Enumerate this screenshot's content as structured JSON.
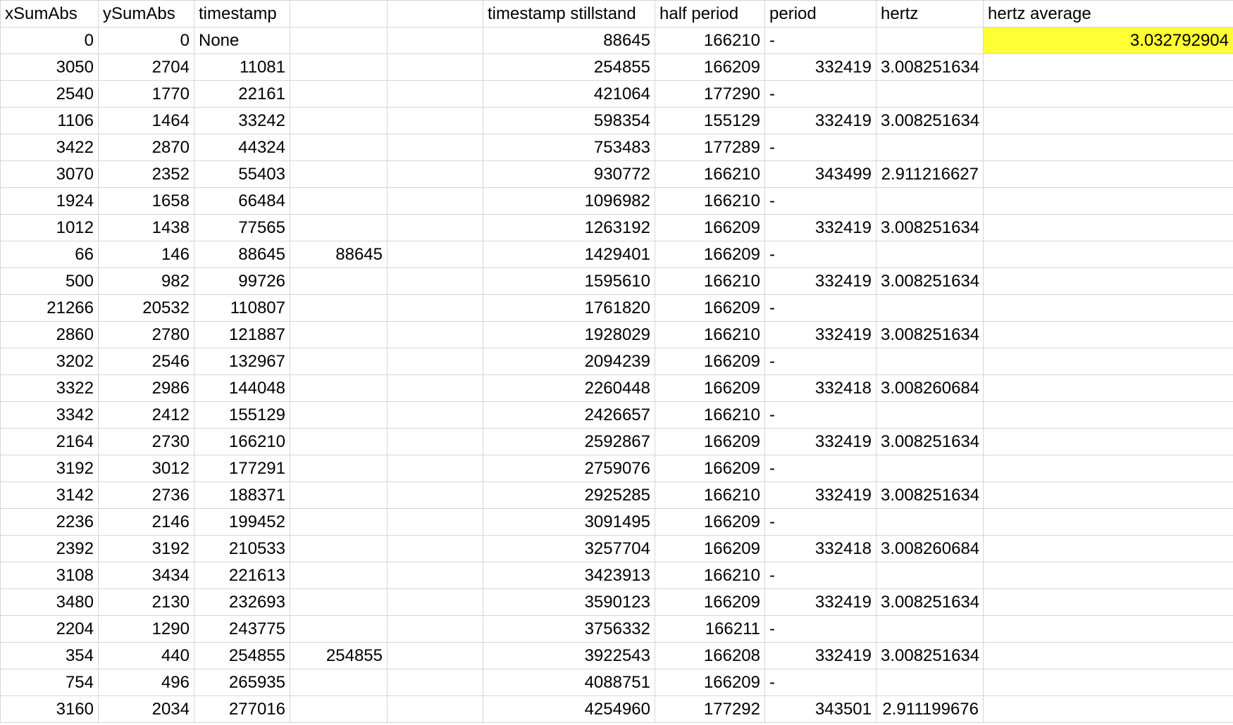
{
  "sheet": {
    "columns": [
      "xSumAbs",
      "ySumAbs",
      "timestamp",
      "",
      "",
      "timestamp stillstand",
      "half period",
      "period",
      "hertz",
      "hertz average"
    ],
    "rows": [
      [
        "0",
        "0",
        "None",
        "",
        "",
        "88645",
        "166210",
        "-",
        "",
        "3.032792904"
      ],
      [
        "3050",
        "2704",
        "11081",
        "",
        "",
        "254855",
        "166209",
        "332419",
        "3.008251634",
        ""
      ],
      [
        "2540",
        "1770",
        "22161",
        "",
        "",
        "421064",
        "177290",
        "-",
        "",
        ""
      ],
      [
        "1106",
        "1464",
        "33242",
        "",
        "",
        "598354",
        "155129",
        "332419",
        "3.008251634",
        ""
      ],
      [
        "3422",
        "2870",
        "44324",
        "",
        "",
        "753483",
        "177289",
        "-",
        "",
        ""
      ],
      [
        "3070",
        "2352",
        "55403",
        "",
        "",
        "930772",
        "166210",
        "343499",
        "2.911216627",
        ""
      ],
      [
        "1924",
        "1658",
        "66484",
        "",
        "",
        "1096982",
        "166210",
        "-",
        "",
        ""
      ],
      [
        "1012",
        "1438",
        "77565",
        "",
        "",
        "1263192",
        "166209",
        "332419",
        "3.008251634",
        ""
      ],
      [
        "66",
        "146",
        "88645",
        "88645",
        "",
        "1429401",
        "166209",
        "-",
        "",
        ""
      ],
      [
        "500",
        "982",
        "99726",
        "",
        "",
        "1595610",
        "166210",
        "332419",
        "3.008251634",
        ""
      ],
      [
        "21266",
        "20532",
        "110807",
        "",
        "",
        "1761820",
        "166209",
        "-",
        "",
        ""
      ],
      [
        "2860",
        "2780",
        "121887",
        "",
        "",
        "1928029",
        "166210",
        "332419",
        "3.008251634",
        ""
      ],
      [
        "3202",
        "2546",
        "132967",
        "",
        "",
        "2094239",
        "166209",
        "-",
        "",
        ""
      ],
      [
        "3322",
        "2986",
        "144048",
        "",
        "",
        "2260448",
        "166209",
        "332418",
        "3.008260684",
        ""
      ],
      [
        "3342",
        "2412",
        "155129",
        "",
        "",
        "2426657",
        "166210",
        "-",
        "",
        ""
      ],
      [
        "2164",
        "2730",
        "166210",
        "",
        "",
        "2592867",
        "166209",
        "332419",
        "3.008251634",
        ""
      ],
      [
        "3192",
        "3012",
        "177291",
        "",
        "",
        "2759076",
        "166209",
        "-",
        "",
        ""
      ],
      [
        "3142",
        "2736",
        "188371",
        "",
        "",
        "2925285",
        "166210",
        "332419",
        "3.008251634",
        ""
      ],
      [
        "2236",
        "2146",
        "199452",
        "",
        "",
        "3091495",
        "166209",
        "-",
        "",
        ""
      ],
      [
        "2392",
        "3192",
        "210533",
        "",
        "",
        "3257704",
        "166209",
        "332418",
        "3.008260684",
        ""
      ],
      [
        "3108",
        "3434",
        "221613",
        "",
        "",
        "3423913",
        "166210",
        "-",
        "",
        ""
      ],
      [
        "3480",
        "2130",
        "232693",
        "",
        "",
        "3590123",
        "166209",
        "332419",
        "3.008251634",
        ""
      ],
      [
        "2204",
        "1290",
        "243775",
        "",
        "",
        "3756332",
        "166211",
        "-",
        "",
        ""
      ],
      [
        "354",
        "440",
        "254855",
        "254855",
        "",
        "3922543",
        "166208",
        "332419",
        "3.008251634",
        ""
      ],
      [
        "754",
        "496",
        "265935",
        "",
        "",
        "4088751",
        "166209",
        "-",
        "",
        ""
      ],
      [
        "3160",
        "2034",
        "277016",
        "",
        "",
        "4254960",
        "177292",
        "343501",
        "2.911199676",
        ""
      ]
    ],
    "highlight": {
      "row": 0,
      "col": 9,
      "color": "#ffff33"
    },
    "gridline_color": "#d6d6d6"
  }
}
